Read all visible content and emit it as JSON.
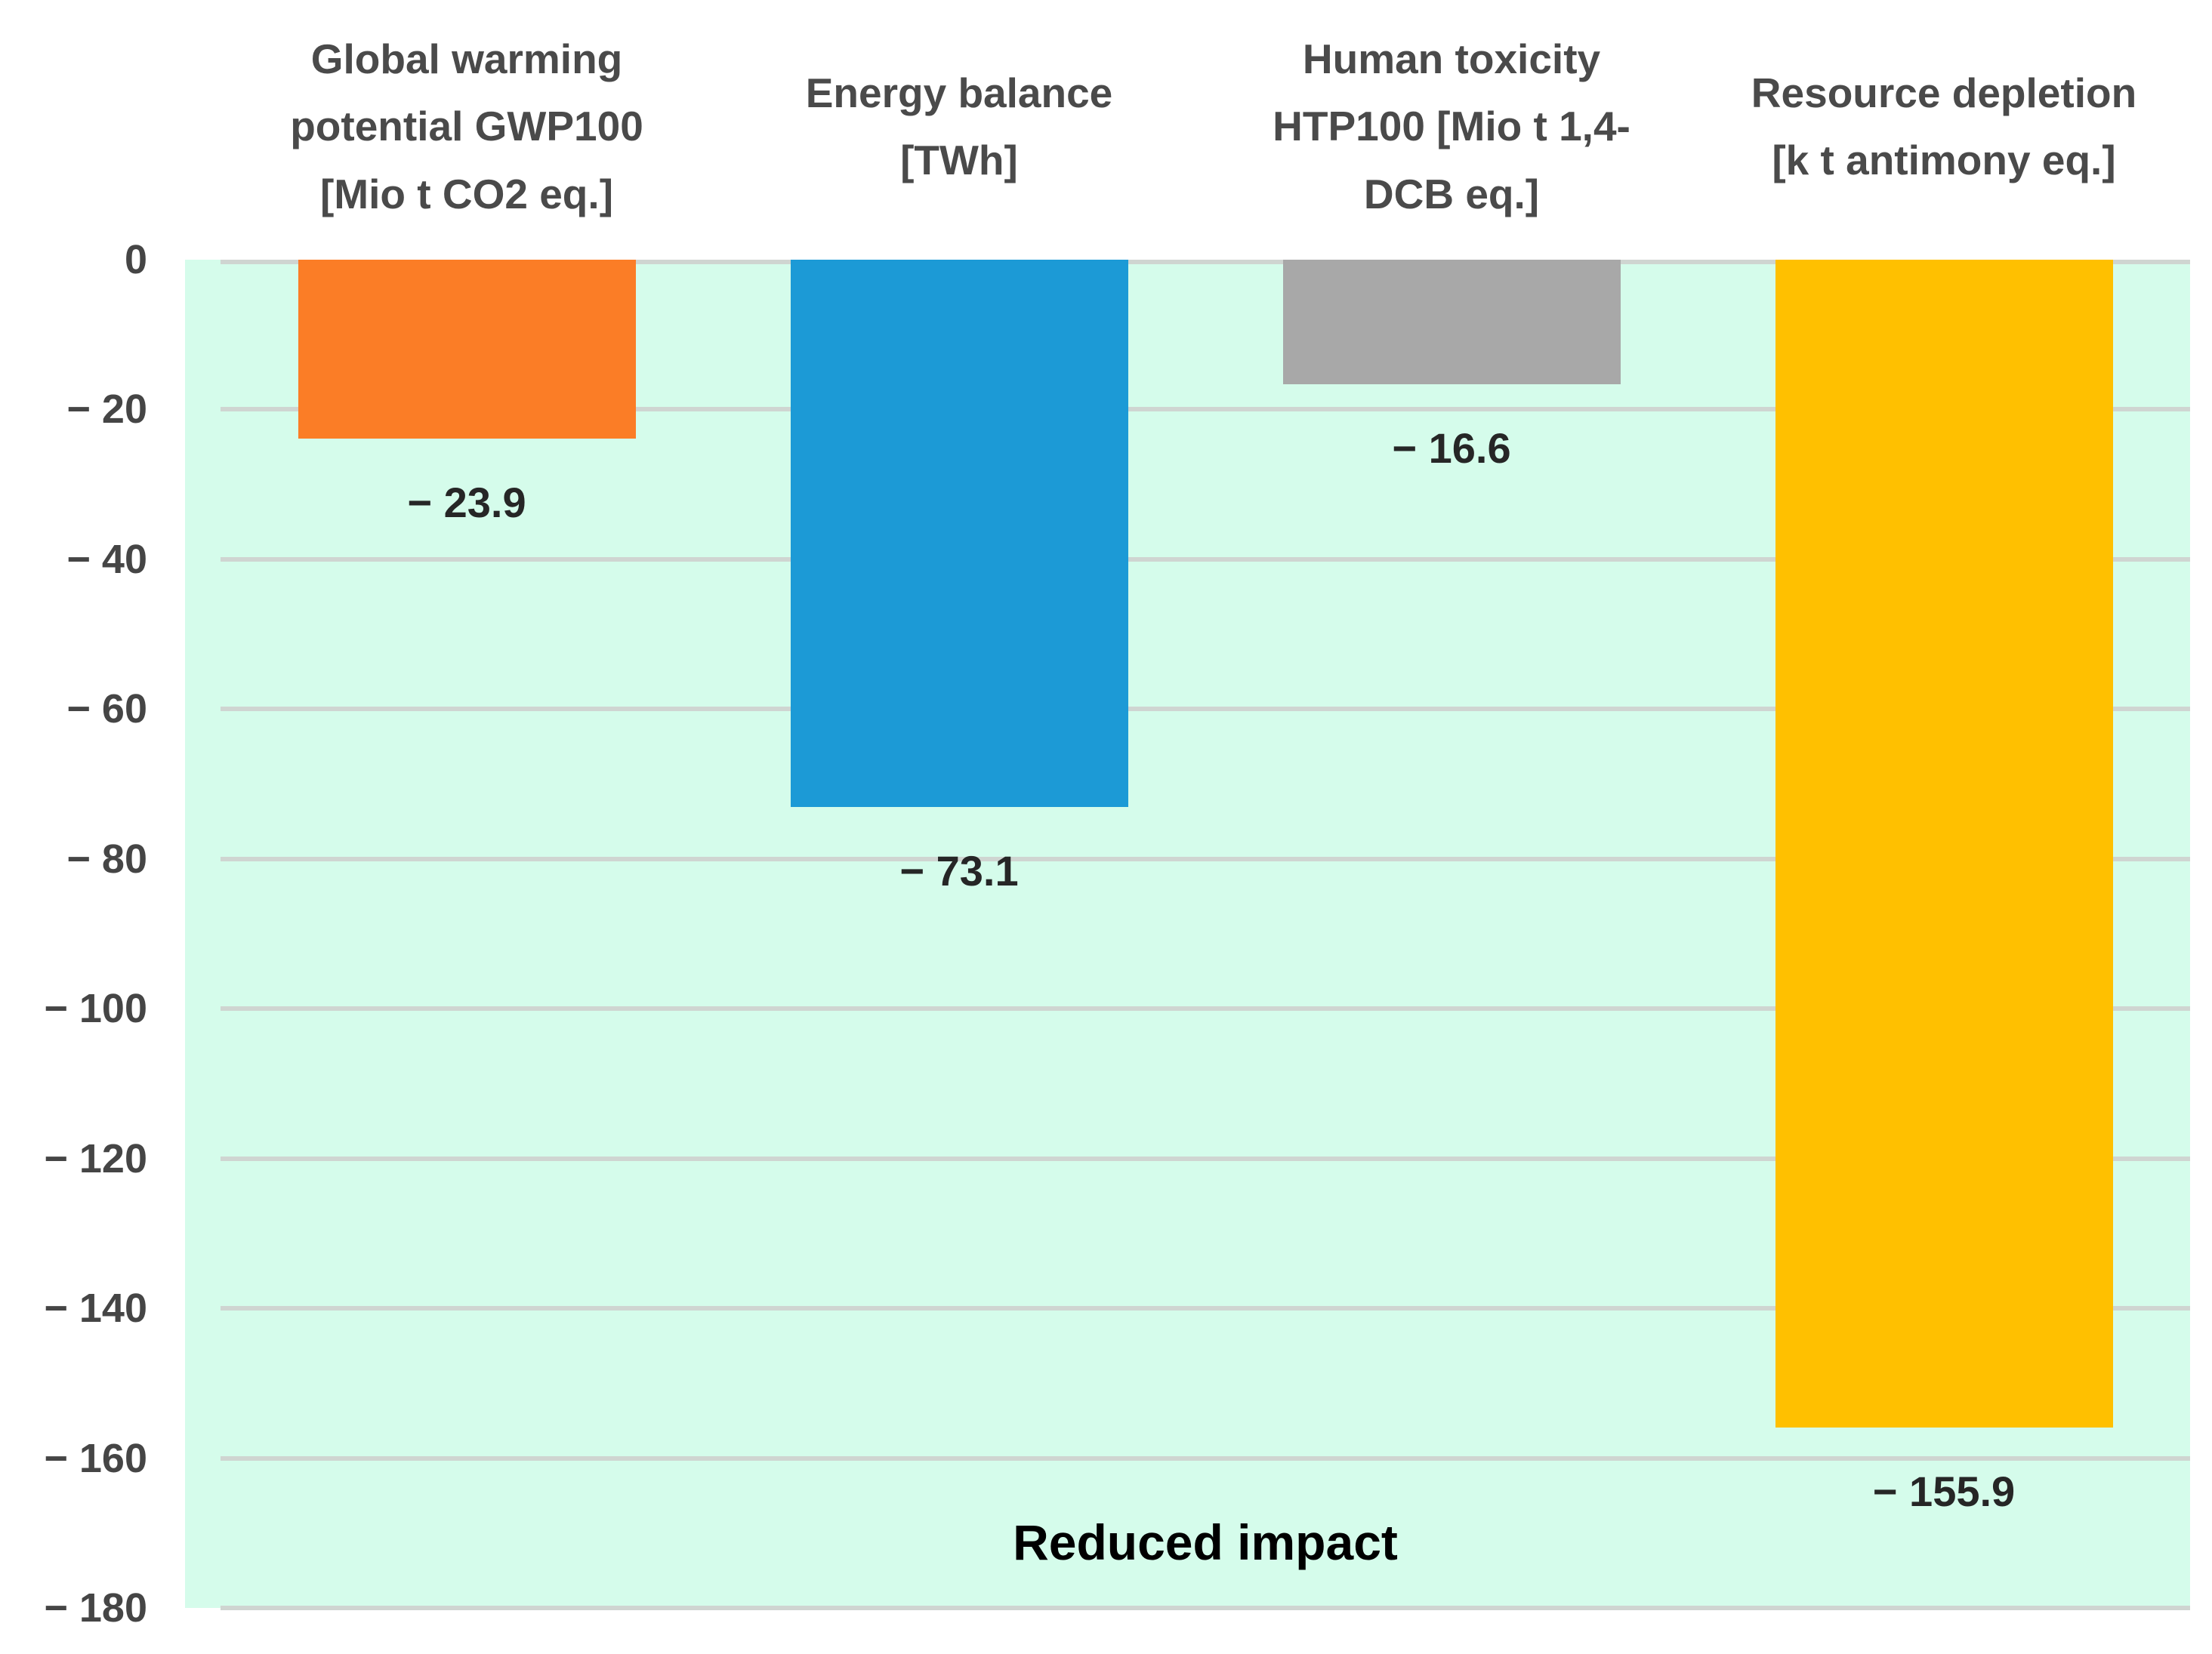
{
  "chart_data": {
    "type": "bar",
    "categories": [
      "Global warming\npotential GWP100\n[Mio t CO2 eq.]",
      "Energy balance\n[TWh]",
      "Human toxicity\nHTP100 [Mio t 1,4-\nDCB eq.]",
      "Resource depletion\n[k t antimony eq.]"
    ],
    "values": [
      -23.9,
      -73.1,
      -16.6,
      -155.9
    ],
    "value_labels": [
      "− 23.9",
      "− 73.1",
      "− 16.6",
      "− 155.9"
    ],
    "bar_colors": [
      "#FB7D26",
      "#1C9AD6",
      "#A8A8A8",
      "#FFC000"
    ],
    "yticks": [
      {
        "value": 0,
        "label": "0"
      },
      {
        "value": -20,
        "label": "− 20"
      },
      {
        "value": -40,
        "label": "− 40"
      },
      {
        "value": -60,
        "label": "− 60"
      },
      {
        "value": -80,
        "label": "− 80"
      },
      {
        "value": -100,
        "label": "− 100"
      },
      {
        "value": -120,
        "label": "− 120"
      },
      {
        "value": -140,
        "label": "− 140"
      },
      {
        "value": -160,
        "label": "− 160"
      },
      {
        "value": -180,
        "label": "− 180"
      }
    ],
    "ylim": [
      -180,
      0
    ],
    "grid": true,
    "legend_position": "none",
    "annotation": "Reduced impact",
    "title": "",
    "xlabel": "",
    "ylabel": "",
    "colors": {
      "plot_bg": "#D5FCEB",
      "gridline": "#CFD5D1",
      "axis_text": "#454545",
      "header_text": "#4A4A4A",
      "value_text": "#262626",
      "annotation_text": "#000000"
    }
  }
}
